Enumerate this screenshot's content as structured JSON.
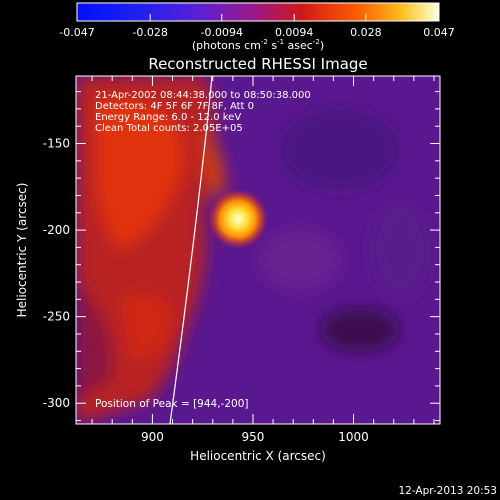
{
  "chart_data": {
    "type": "heatmap",
    "title": "Reconstructed RHESSI Image",
    "xlabel": "Heliocentric X (arcsec)",
    "ylabel": "Heliocentric Y (arcsec)",
    "xlim": [
      862,
      1043
    ],
    "ylim": [
      -312,
      -111
    ],
    "x_ticks": [
      900,
      950,
      1000
    ],
    "y_ticks": [
      -150,
      -200,
      -250,
      -300
    ],
    "colorbar": {
      "ticks": [
        "-0.047",
        "-0.028",
        "-0.0094",
        "0.0094",
        "0.028",
        "0.047"
      ],
      "range": [
        -0.047,
        0.047
      ],
      "unit_text": "(photons cm",
      "unit_exp1": "-2",
      "unit_mid": " s",
      "unit_exp2": "-1",
      "unit_mid2": " asec",
      "unit_exp3": "-2",
      "unit_end": ")"
    },
    "annotations": [
      "21-Apr-2002 08:44:38.000 to 08:50:38.000",
      "Detectors: 4F 5F 6F 7F 8F, Att 0",
      "Energy Range: 6.0 - 12.0 keV",
      "Clean     Total counts: 2.05E+05"
    ],
    "peak_label": "Position of Peak = [944,-200]",
    "peak": [
      944,
      -200
    ],
    "timestamp": "12-Apr-2013 20:53"
  }
}
